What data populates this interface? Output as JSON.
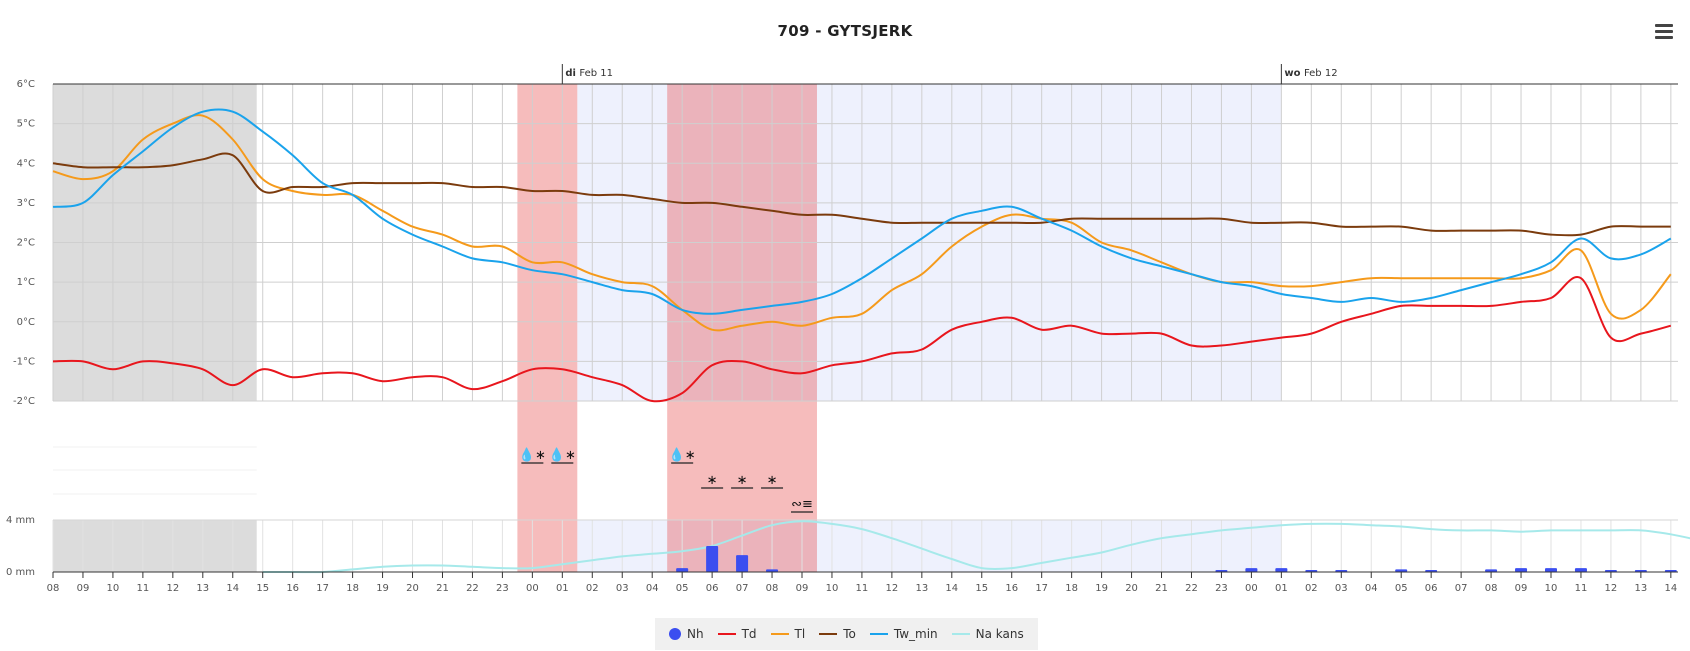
{
  "header": {
    "title": "709 - GYTSJERK"
  },
  "chart_data": {
    "type": "line",
    "title": "709 - GYTSJERK",
    "hours": [
      "08",
      "09",
      "10",
      "11",
      "12",
      "13",
      "14",
      "15",
      "16",
      "17",
      "18",
      "19",
      "20",
      "21",
      "22",
      "23",
      "00",
      "01",
      "02",
      "03",
      "04",
      "05",
      "06",
      "07",
      "08",
      "09",
      "10",
      "11",
      "12",
      "13",
      "14",
      "15",
      "16",
      "17",
      "18",
      "19",
      "20",
      "21",
      "22",
      "23",
      "00",
      "01",
      "02",
      "03",
      "04",
      "05",
      "06",
      "07",
      "08",
      "09",
      "10",
      "11",
      "12",
      "13",
      "14"
    ],
    "day_markers": [
      {
        "index": 17,
        "day": "di",
        "date": "Feb 11"
      },
      {
        "index": 41,
        "day": "wo",
        "date": "Feb 12"
      }
    ],
    "y_temp": {
      "ticks": [
        "6°C",
        "5°C",
        "4°C",
        "3°C",
        "2°C",
        "1°C",
        "0°C",
        "-1°C",
        "-2°C"
      ],
      "min": -2,
      "max": 6
    },
    "y_precip": {
      "ticks": [
        "4 mm",
        "0 mm"
      ],
      "min": 0,
      "max": 4
    },
    "series": [
      {
        "name": "Td",
        "color": "#e8161d",
        "values": [
          -1.0,
          -1.0,
          -1.2,
          -1.0,
          -1.05,
          -1.2,
          -1.6,
          -1.2,
          -1.4,
          -1.3,
          -1.3,
          -1.5,
          -1.4,
          -1.4,
          -1.7,
          -1.5,
          -1.2,
          -1.2,
          -1.4,
          -1.6,
          -2.0,
          -1.8,
          -1.1,
          -1.0,
          -1.2,
          -1.3,
          -1.1,
          -1.0,
          -0.8,
          -0.7,
          -0.2,
          0.0,
          0.1,
          -0.2,
          -0.1,
          -0.3,
          -0.3,
          -0.3,
          -0.6,
          -0.6,
          -0.5,
          -0.4,
          -0.3,
          0.0,
          0.2,
          0.4,
          0.4,
          0.4,
          0.4,
          0.5,
          0.6,
          1.1,
          -0.4,
          -0.3,
          -0.1
        ]
      },
      {
        "name": "Tl",
        "color": "#f59a1b",
        "values": [
          3.8,
          3.6,
          3.8,
          4.6,
          5.0,
          5.2,
          4.6,
          3.6,
          3.3,
          3.2,
          3.2,
          2.8,
          2.4,
          2.2,
          1.9,
          1.9,
          1.5,
          1.5,
          1.2,
          1.0,
          0.9,
          0.3,
          -0.2,
          -0.1,
          0.0,
          -0.1,
          0.1,
          0.2,
          0.8,
          1.2,
          1.9,
          2.4,
          2.7,
          2.6,
          2.5,
          2.0,
          1.8,
          1.5,
          1.2,
          1.0,
          1.0,
          0.9,
          0.9,
          1.0,
          1.1,
          1.1,
          1.1,
          1.1,
          1.1,
          1.1,
          1.3,
          1.8,
          0.2,
          0.3,
          1.2
        ]
      },
      {
        "name": "To",
        "color": "#7b3b0d",
        "values": [
          4.0,
          3.9,
          3.9,
          3.9,
          3.95,
          4.1,
          4.2,
          3.3,
          3.4,
          3.4,
          3.5,
          3.5,
          3.5,
          3.5,
          3.4,
          3.4,
          3.3,
          3.3,
          3.2,
          3.2,
          3.1,
          3.0,
          3.0,
          2.9,
          2.8,
          2.7,
          2.7,
          2.6,
          2.5,
          2.5,
          2.5,
          2.5,
          2.5,
          2.5,
          2.6,
          2.6,
          2.6,
          2.6,
          2.6,
          2.6,
          2.5,
          2.5,
          2.5,
          2.4,
          2.4,
          2.4,
          2.3,
          2.3,
          2.3,
          2.3,
          2.2,
          2.2,
          2.4,
          2.4,
          2.4
        ]
      },
      {
        "name": "Tw_min",
        "color": "#1aa3ec",
        "values": [
          2.9,
          3.0,
          3.7,
          4.3,
          4.9,
          5.3,
          5.3,
          4.8,
          4.2,
          3.5,
          3.2,
          2.6,
          2.2,
          1.9,
          1.6,
          1.5,
          1.3,
          1.2,
          1.0,
          0.8,
          0.7,
          0.3,
          0.2,
          0.3,
          0.4,
          0.5,
          0.7,
          1.1,
          1.6,
          2.1,
          2.6,
          2.8,
          2.9,
          2.6,
          2.3,
          1.9,
          1.6,
          1.4,
          1.2,
          1.0,
          0.9,
          0.7,
          0.6,
          0.5,
          0.6,
          0.5,
          0.6,
          0.8,
          1.0,
          1.2,
          1.5,
          2.1,
          1.6,
          1.7,
          2.1
        ]
      }
    ],
    "na_kans": {
      "name": "Na kans",
      "color": "#a6e9ea",
      "start_index": 7,
      "values": [
        0,
        0,
        0,
        0.2,
        0.4,
        0.5,
        0.5,
        0.4,
        0.3,
        0.3,
        0.6,
        0.9,
        1.2,
        1.4,
        1.6,
        2.0,
        2.8,
        3.6,
        3.9,
        3.7,
        3.3,
        2.6,
        1.8,
        1.0,
        0.3,
        0.3,
        0.7,
        1.1,
        1.5,
        2.1,
        2.6,
        2.9,
        3.2,
        3.4,
        3.6,
        3.7,
        3.7,
        3.6,
        3.5,
        3.3,
        3.2,
        3.2,
        3.1,
        3.2,
        3.2,
        3.2,
        3.2,
        2.9,
        2.4,
        1.8
      ]
    },
    "nh": {
      "name": "Nh",
      "color": "#3b4ef0",
      "values": [
        0,
        0,
        0,
        0,
        0,
        0,
        0,
        0,
        0,
        0,
        0,
        0,
        0,
        0,
        0,
        0,
        0,
        0,
        0,
        0,
        0,
        0.3,
        2.0,
        1.3,
        0.2,
        0,
        0,
        0,
        0,
        0,
        0,
        0,
        0,
        0,
        0,
        0,
        0,
        0,
        0,
        0.1,
        0.3,
        0.3,
        0.1,
        0.1,
        0,
        0.2,
        0.1,
        0,
        0.2,
        0.3,
        0.3,
        0.3,
        0.1,
        0.1,
        0.1
      ]
    },
    "night_shading_hours": [
      [
        0,
        6.8
      ]
    ],
    "light_blue_ranges": [
      [
        17.5,
        41
      ]
    ],
    "red_warning_ranges": [
      [
        15.5,
        17.5
      ],
      [
        20.5,
        25.5
      ]
    ],
    "weather_symbols": [
      {
        "index": 16,
        "row": 1,
        "symbol": "💧∗"
      },
      {
        "index": 17,
        "row": 1,
        "symbol": "💧∗"
      },
      {
        "index": 21,
        "row": 1,
        "symbol": "💧∗"
      },
      {
        "index": 22,
        "row": 2,
        "symbol": "∗"
      },
      {
        "index": 23,
        "row": 2,
        "symbol": "∗"
      },
      {
        "index": 24,
        "row": 2,
        "symbol": "∗"
      },
      {
        "index": 25,
        "row": 3,
        "symbol": "∾≡"
      }
    ]
  },
  "legend": {
    "items": [
      {
        "label": "Nh",
        "color": "#3b4ef0",
        "kind": "dot"
      },
      {
        "label": "Td",
        "color": "#e8161d",
        "kind": "line"
      },
      {
        "label": "Tl",
        "color": "#f59a1b",
        "kind": "line"
      },
      {
        "label": "To",
        "color": "#7b3b0d",
        "kind": "line"
      },
      {
        "label": "Tw_min",
        "color": "#1aa3ec",
        "kind": "line"
      },
      {
        "label": "Na kans",
        "color": "#a6e9ea",
        "kind": "line"
      }
    ]
  }
}
